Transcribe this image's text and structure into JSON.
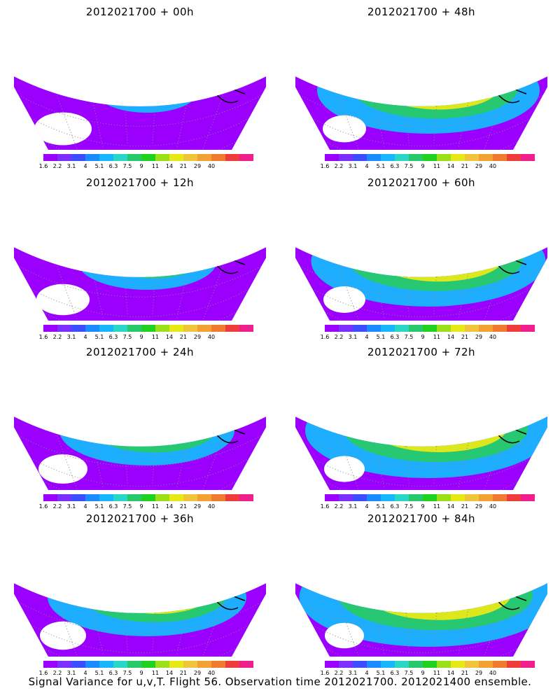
{
  "colorbar": {
    "labels": [
      "1.6",
      "2.2",
      "3.1",
      "4",
      "5.1",
      "6.3",
      "7.5",
      "9",
      "11",
      "14",
      "21",
      "29",
      "40"
    ],
    "colors": [
      "#9b00ff",
      "#7a2fff",
      "#3b4dff",
      "#1a8cff",
      "#16b7ff",
      "#2ad6c8",
      "#27c96a",
      "#1fd21f",
      "#9be016",
      "#e8e817",
      "#f0c53a",
      "#f2a233",
      "#f07a2e",
      "#ee3b3b",
      "#f01e8c"
    ]
  },
  "panels": [
    {
      "title": "2012021700 + 00h",
      "level": 0.2
    },
    {
      "title": "2012021700 + 48h",
      "level": 0.7
    },
    {
      "title": "2012021700 + 12h",
      "level": 0.35
    },
    {
      "title": "2012021700 + 60h",
      "level": 0.75
    },
    {
      "title": "2012021700 + 24h",
      "level": 0.5
    },
    {
      "title": "2012021700 + 72h",
      "level": 0.8
    },
    {
      "title": "2012021700 + 36h",
      "level": 0.6
    },
    {
      "title": "2012021700 + 84h",
      "level": 0.85
    }
  ],
  "caption": "Signal Variance for u,v,T. Flight 56. Observation time 2012021700. 2012021400 ensemble."
}
